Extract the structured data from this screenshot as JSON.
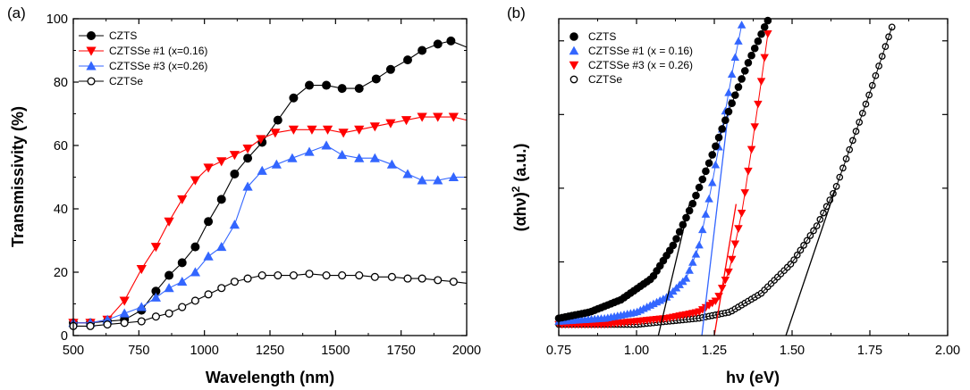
{
  "panel_labels": [
    "(a)",
    "(b)"
  ],
  "colors": {
    "CZTS": "#000000",
    "CZTSSe1": "#ff0000",
    "CZTSSe3": "#3366ff",
    "CZTSe": "#000000",
    "fit": "#000000"
  },
  "chart_data": [
    {
      "type": "line",
      "panel": "(a)",
      "xlabel": "Wavelength (nm)",
      "ylabel": "Transmissivity (%)",
      "xlim": [
        500,
        2000
      ],
      "ylim": [
        0,
        100
      ],
      "xticks": [
        "500",
        "750",
        "1000",
        "1250",
        "1500",
        "1750",
        "2000"
      ],
      "yticks": [
        "0",
        "20",
        "40",
        "60",
        "80",
        "100"
      ],
      "legend_position": "top-left",
      "series": [
        {
          "name": "CZTS",
          "marker": "circle-filled",
          "color": "#000000",
          "x": [
            500,
            565,
            630,
            695,
            760,
            815,
            865,
            915,
            965,
            1015,
            1065,
            1115,
            1165,
            1220,
            1280,
            1340,
            1400,
            1465,
            1525,
            1590,
            1655,
            1710,
            1775,
            1830,
            1890,
            1940,
            2000
          ],
          "y": [
            4,
            4,
            4.5,
            5,
            8,
            14,
            19,
            23,
            28,
            36,
            43,
            51,
            56,
            61,
            68,
            75,
            79,
            79,
            78,
            78,
            81,
            84,
            87,
            90,
            92,
            93,
            91
          ]
        },
        {
          "name": "CZTSSe #1 (x=0.16)",
          "marker": "triangle-down",
          "color": "#ff0000",
          "x": [
            500,
            565,
            630,
            695,
            760,
            815,
            865,
            915,
            965,
            1015,
            1065,
            1115,
            1165,
            1215,
            1270,
            1340,
            1410,
            1470,
            1530,
            1590,
            1650,
            1710,
            1770,
            1830,
            1890,
            1950,
            2000
          ],
          "y": [
            4,
            4,
            5,
            11,
            21,
            28,
            36,
            43,
            49,
            53,
            55,
            57,
            59,
            62,
            64,
            65,
            65,
            65,
            64,
            65,
            66,
            67,
            68,
            69,
            69,
            69,
            68
          ]
        },
        {
          "name": "CZTSSe #3 (x=0.26)",
          "marker": "triangle-up",
          "color": "#3366ff",
          "x": [
            500,
            565,
            630,
            695,
            760,
            815,
            865,
            915,
            965,
            1015,
            1065,
            1115,
            1165,
            1220,
            1275,
            1335,
            1400,
            1465,
            1525,
            1590,
            1650,
            1715,
            1775,
            1830,
            1890,
            1950,
            2000
          ],
          "y": [
            4,
            4,
            5,
            7,
            9,
            12,
            15,
            17,
            20,
            25,
            28,
            35,
            47,
            52,
            54,
            56,
            58,
            60,
            57,
            56,
            56,
            54,
            51,
            49,
            49,
            50,
            50
          ]
        },
        {
          "name": "CZTSe",
          "marker": "circle-open",
          "color": "#000000",
          "x": [
            500,
            565,
            630,
            695,
            760,
            815,
            865,
            915,
            965,
            1015,
            1065,
            1115,
            1165,
            1220,
            1280,
            1340,
            1400,
            1465,
            1525,
            1590,
            1650,
            1715,
            1775,
            1830,
            1890,
            1950,
            2000
          ],
          "y": [
            3,
            3,
            3.5,
            4,
            4.5,
            6,
            7,
            9,
            11,
            13,
            15,
            17,
            18,
            19,
            19,
            19,
            19.5,
            19,
            19,
            19,
            18.5,
            18.5,
            18,
            18,
            17.5,
            17,
            16.5
          ]
        }
      ]
    },
    {
      "type": "scatter",
      "panel": "(b)",
      "xlabel_main": "hν (eV)",
      "ylabel_main": "(αhν)",
      "ylabel_sup": "2",
      "ylabel_tail": " (a.u.)",
      "xlim": [
        0.75,
        2.0
      ],
      "ylim": [
        0,
        1
      ],
      "xticks": [
        "0.75",
        "1.00",
        "1.25",
        "1.50",
        "1.75",
        "2.00"
      ],
      "y_tick_labels_shown": false,
      "legend_position": "top-left",
      "series": [
        {
          "name": "CZTS",
          "marker": "circle-filled",
          "color": "#000000",
          "x_start": 0.75,
          "x_end": 1.44,
          "curve": [
            [
              0.75,
              0.03
            ],
            [
              0.85,
              0.05
            ],
            [
              0.95,
              0.09
            ],
            [
              1.05,
              0.16
            ],
            [
              1.12,
              0.27
            ],
            [
              1.18,
              0.4
            ],
            [
              1.24,
              0.55
            ],
            [
              1.3,
              0.71
            ],
            [
              1.36,
              0.86
            ],
            [
              1.41,
              0.97
            ],
            [
              1.44,
              1.03
            ]
          ],
          "fit_line": [
            [
              1.07,
              0.0
            ],
            [
              1.17,
              0.4
            ]
          ]
        },
        {
          "name": "CZTSSe #1 (x = 0.16)",
          "marker": "triangle-up",
          "color": "#3366ff",
          "x_start": 0.75,
          "x_end": 1.34,
          "curve": [
            [
              0.75,
              0.02
            ],
            [
              0.9,
              0.03
            ],
            [
              1.0,
              0.05
            ],
            [
              1.1,
              0.1
            ],
            [
              1.16,
              0.16
            ],
            [
              1.2,
              0.26
            ],
            [
              1.24,
              0.45
            ],
            [
              1.28,
              0.67
            ],
            [
              1.31,
              0.84
            ],
            [
              1.34,
              0.99
            ]
          ],
          "fit_line": [
            [
              1.21,
              0.0
            ],
            [
              1.3,
              0.74
            ]
          ]
        },
        {
          "name": "CZTSSe #3 (x = 0.26)",
          "marker": "triangle-down",
          "color": "#ff0000",
          "x_start": 0.75,
          "x_end": 1.43,
          "curve": [
            [
              0.75,
              0.01
            ],
            [
              0.9,
              0.01
            ],
            [
              1.0,
              0.02
            ],
            [
              1.1,
              0.03
            ],
            [
              1.2,
              0.05
            ],
            [
              1.26,
              0.09
            ],
            [
              1.3,
              0.19
            ],
            [
              1.34,
              0.38
            ],
            [
              1.37,
              0.58
            ],
            [
              1.4,
              0.79
            ],
            [
              1.43,
              1.01
            ]
          ],
          "fit_line": [
            [
              1.25,
              0.0
            ],
            [
              1.32,
              0.4
            ]
          ]
        },
        {
          "name": "CZTSe",
          "marker": "circle-open",
          "color": "#000000",
          "x_start": 0.75,
          "x_end": 1.83,
          "curve": [
            [
              0.75,
              0.01
            ],
            [
              0.9,
              0.01
            ],
            [
              1.0,
              0.01
            ],
            [
              1.1,
              0.02
            ],
            [
              1.2,
              0.03
            ],
            [
              1.3,
              0.05
            ],
            [
              1.4,
              0.11
            ],
            [
              1.5,
              0.21
            ],
            [
              1.58,
              0.33
            ],
            [
              1.64,
              0.45
            ],
            [
              1.7,
              0.62
            ],
            [
              1.75,
              0.76
            ],
            [
              1.8,
              0.91
            ],
            [
              1.83,
              1.0
            ]
          ],
          "fit_line": [
            [
              1.48,
              0.0
            ],
            [
              1.64,
              0.45
            ]
          ]
        }
      ]
    }
  ]
}
